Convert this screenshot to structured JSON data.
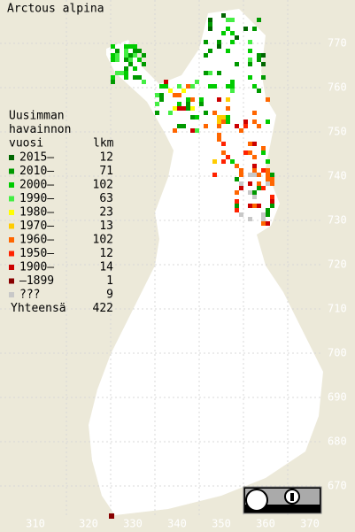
{
  "title": "Arctous alpina",
  "legend": {
    "heading": [
      "Uusimman",
      "havainnon",
      "vuosi"
    ],
    "count_heading": "lkm",
    "rows": [
      {
        "label": "2015–",
        "count": 12,
        "color": "#006600"
      },
      {
        "label": "2010–",
        "count": 71,
        "color": "#009900"
      },
      {
        "label": "2000–",
        "count": 102,
        "color": "#00cc00"
      },
      {
        "label": "1990–",
        "count": 63,
        "color": "#44ee44"
      },
      {
        "label": "1980–",
        "count": 23,
        "color": "#ffff00"
      },
      {
        "label": "1970–",
        "count": 13,
        "color": "#ffcc00"
      },
      {
        "label": "1960–",
        "count": 102,
        "color": "#ff6600"
      },
      {
        "label": "1950–",
        "count": 12,
        "color": "#ff2200"
      },
      {
        "label": "1900–",
        "count": 14,
        "color": "#cc0000"
      },
      {
        "label": "–1899",
        "count": 1,
        "color": "#880000"
      },
      {
        "label": "???",
        "count": 9,
        "color": "#c8c8c8"
      }
    ],
    "total": {
      "label": "Yhteensä",
      "count": 422
    }
  },
  "grid": {
    "northing": [
      "770",
      "760",
      "750",
      "740",
      "730",
      "720",
      "710",
      "700",
      "690",
      "680",
      "670"
    ],
    "easting": [
      "310",
      "320",
      "330",
      "340",
      "350",
      "360",
      "370"
    ]
  }
}
